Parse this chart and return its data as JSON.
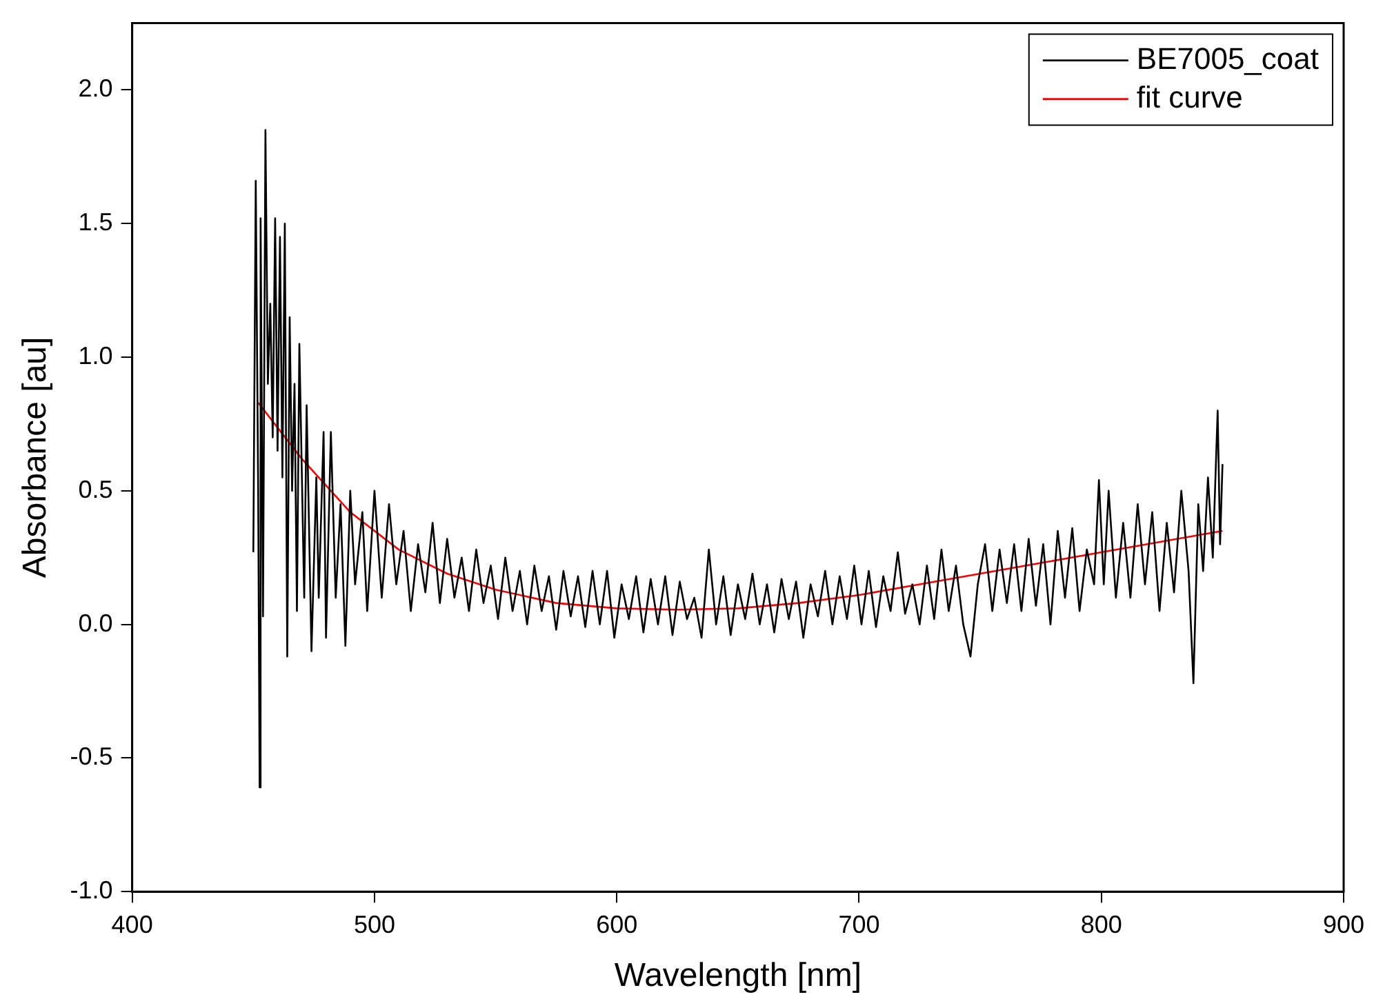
{
  "chart_data": {
    "type": "line",
    "xlabel": "Wavelength [nm]",
    "ylabel": "Absorbance [au]",
    "xlim": [
      400,
      900
    ],
    "xticks": [
      400,
      500,
      600,
      700,
      800,
      900
    ],
    "ylim": [
      -1.0,
      2.25
    ],
    "yticks": [
      {
        "value": -1,
        "label": "-1.0"
      },
      {
        "value": -0.5,
        "label": "-0.5"
      },
      {
        "value": 0,
        "label": "0.0"
      },
      {
        "value": 0.5,
        "label": "0.5"
      },
      {
        "value": 1,
        "label": "1.0"
      },
      {
        "value": 1.5,
        "label": "1.5"
      },
      {
        "value": 2,
        "label": "2.0"
      }
    ],
    "grid": false,
    "legend": "top right",
    "marker": "none",
    "line_style": "solid",
    "series": [
      {
        "name": "BE7005_coat",
        "color": "#000000",
        "x": [
          450,
          451,
          452,
          452.6,
          453,
          454,
          455,
          456,
          457,
          458,
          459,
          460,
          461,
          462,
          463,
          464,
          465,
          466,
          467,
          468,
          469,
          471,
          472,
          474,
          476,
          477,
          479,
          480,
          482,
          484,
          486,
          488,
          490,
          492,
          495,
          497,
          500,
          503,
          506,
          509,
          512,
          515,
          518,
          521,
          524,
          527,
          530,
          533,
          536,
          539,
          542,
          545,
          548,
          551,
          554,
          557,
          560,
          563,
          566,
          569,
          572,
          575,
          578,
          581,
          584,
          587,
          590,
          593,
          596,
          599,
          602,
          605,
          608,
          611,
          614,
          617,
          620,
          623,
          626,
          629,
          632,
          635,
          638,
          641,
          644,
          647,
          650,
          653,
          656,
          659,
          662,
          665,
          668,
          671,
          674,
          677,
          680,
          683,
          686,
          689,
          692,
          695,
          698,
          701,
          704,
          707,
          710,
          713,
          716,
          719,
          722,
          725,
          728,
          731,
          734,
          737,
          740,
          743,
          746,
          749,
          752,
          755,
          758,
          761,
          764,
          767,
          770,
          773,
          776,
          779,
          782,
          785,
          788,
          791,
          794,
          797,
          799,
          801,
          803,
          806,
          809,
          812,
          815,
          818,
          821,
          824,
          827,
          830,
          833,
          836,
          838,
          840,
          842,
          844,
          846,
          848,
          849,
          850
        ],
        "values": [
          0.27,
          1.66,
          0.5,
          -0.61,
          1.52,
          0.03,
          1.85,
          0.9,
          1.2,
          0.7,
          1.52,
          0.65,
          1.45,
          0.55,
          1.5,
          -0.12,
          1.15,
          0.5,
          0.9,
          0.05,
          1.05,
          0.1,
          0.82,
          -0.1,
          0.55,
          0.1,
          0.72,
          -0.05,
          0.72,
          0.1,
          0.45,
          -0.08,
          0.5,
          0.15,
          0.42,
          0.05,
          0.5,
          0.1,
          0.45,
          0.15,
          0.35,
          0.05,
          0.3,
          0.12,
          0.38,
          0.08,
          0.32,
          0.1,
          0.25,
          0.05,
          0.28,
          0.08,
          0.22,
          0.02,
          0.25,
          0.05,
          0.2,
          0.0,
          0.22,
          0.05,
          0.18,
          -0.02,
          0.2,
          0.03,
          0.18,
          -0.01,
          0.2,
          0.0,
          0.2,
          -0.05,
          0.15,
          0.02,
          0.18,
          -0.03,
          0.17,
          0.0,
          0.18,
          -0.04,
          0.16,
          0.02,
          0.1,
          -0.05,
          0.28,
          0.0,
          0.18,
          -0.04,
          0.15,
          0.02,
          0.19,
          0.0,
          0.15,
          -0.03,
          0.17,
          0.02,
          0.16,
          -0.05,
          0.15,
          0.03,
          0.2,
          0.0,
          0.18,
          0.02,
          0.22,
          0.0,
          0.2,
          -0.01,
          0.18,
          0.05,
          0.27,
          0.04,
          0.15,
          0.0,
          0.22,
          0.02,
          0.28,
          0.05,
          0.22,
          0.0,
          -0.12,
          0.15,
          0.3,
          0.05,
          0.28,
          0.08,
          0.3,
          0.05,
          0.32,
          0.07,
          0.3,
          0.0,
          0.35,
          0.1,
          0.36,
          0.05,
          0.28,
          0.15,
          0.54,
          0.15,
          0.5,
          0.1,
          0.38,
          0.1,
          0.45,
          0.15,
          0.42,
          0.05,
          0.38,
          0.12,
          0.5,
          0.2,
          -0.22,
          0.45,
          0.2,
          0.55,
          0.25,
          0.8,
          0.3,
          0.6
        ]
      },
      {
        "name": "fit curve",
        "color": "#ff0000",
        "x": [
          452,
          470,
          490,
          510,
          530,
          550,
          575,
          600,
          625,
          650,
          675,
          700,
          725,
          750,
          775,
          800,
          825,
          850
        ],
        "values": [
          0.83,
          0.62,
          0.42,
          0.28,
          0.19,
          0.13,
          0.08,
          0.06,
          0.055,
          0.06,
          0.08,
          0.11,
          0.15,
          0.19,
          0.23,
          0.27,
          0.31,
          0.35
        ]
      }
    ]
  }
}
